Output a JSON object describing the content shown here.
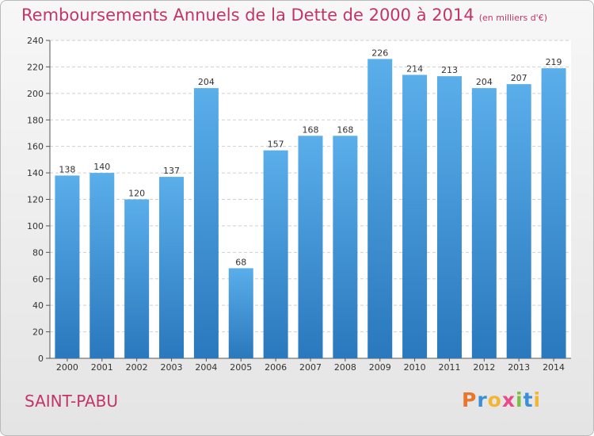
{
  "chart_data": {
    "type": "bar",
    "title": "Remboursements Annuels de la Dette de 2000 à 2014",
    "subtitle": "(en milliers d'€)",
    "categories": [
      "2000",
      "2001",
      "2002",
      "2003",
      "2004",
      "2005",
      "2006",
      "2007",
      "2008",
      "2009",
      "2010",
      "2011",
      "2012",
      "2013",
      "2014"
    ],
    "values": [
      138,
      140,
      120,
      137,
      204,
      68,
      157,
      168,
      168,
      226,
      214,
      213,
      204,
      207,
      219
    ],
    "ylim": [
      0,
      240
    ],
    "yticks": [
      0,
      20,
      40,
      60,
      80,
      100,
      120,
      140,
      160,
      180,
      200,
      220,
      240
    ],
    "xlabel": "",
    "ylabel": "",
    "grid": true,
    "bar_color": "#4a9fe0",
    "bar_color_dark": "#2f7fc4"
  },
  "commune": "SAINT-PABU",
  "logo": {
    "letters": [
      "P",
      "r",
      "o",
      "x",
      "i",
      "t",
      "i"
    ],
    "colors": [
      "#e8762c",
      "#3a8fd8",
      "#f2b632",
      "#e84a8a",
      "#7cc043",
      "#3a8fd8",
      "#f2b632"
    ]
  },
  "colors": {
    "accent": "#c13668"
  }
}
